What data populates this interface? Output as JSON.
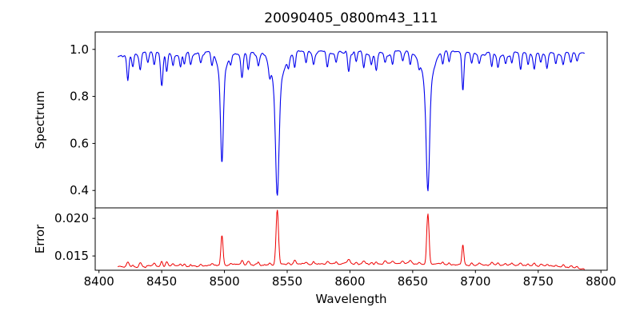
{
  "figure": {
    "title": "20090405_0800m43_111"
  },
  "chart_data": {
    "type": "line",
    "title": "20090405_0800m43_111",
    "xlabel": "Wavelength",
    "grid": false,
    "legend": "none",
    "x_data_range": [
      8415,
      8787
    ],
    "xlim": [
      8397,
      8805
    ],
    "xticks": [
      8400,
      8450,
      8500,
      8550,
      8600,
      8650,
      8700,
      8750,
      8800
    ],
    "panels": [
      {
        "name": "spectrum",
        "ylabel": "Spectrum",
        "ylim": [
          0.326,
          1.074
        ],
        "yticks": [
          0.4,
          0.6,
          0.8,
          1.0
        ],
        "ytick_labels": [
          "0.4",
          "0.6",
          "0.8",
          "1.0"
        ],
        "line_color": "#0000ee",
        "continuum": 0.992,
        "major_absorption_lines": [
          {
            "center": 8498.0,
            "min_flux": 0.51,
            "core_depth": 0.36,
            "core_width": 1.5,
            "wing_depth": 0.115,
            "wing_width": 4.5
          },
          {
            "center": 8542.1,
            "min_flux": 0.37,
            "core_depth": 0.46,
            "core_width": 1.9,
            "wing_depth": 0.155,
            "wing_width": 6.5
          },
          {
            "center": 8662.1,
            "min_flux": 0.39,
            "core_depth": 0.445,
            "core_width": 1.8,
            "wing_depth": 0.15,
            "wing_width": 6.0
          }
        ],
        "minor_absorption_lines": [
          [
            8423,
            0.105
          ],
          [
            8427,
            0.05
          ],
          [
            8433,
            0.065
          ],
          [
            8439,
            0.04
          ],
          [
            8444,
            0.055
          ],
          [
            8450,
            0.135,
            1.3
          ],
          [
            8454,
            0.08
          ],
          [
            8459,
            0.045
          ],
          [
            8465,
            0.055
          ],
          [
            8468,
            0.05
          ],
          [
            8473,
            0.04
          ],
          [
            8481,
            0.045
          ],
          [
            8490,
            0.055
          ],
          [
            8505,
            0.04
          ],
          [
            8514,
            0.105,
            1.2
          ],
          [
            8519,
            0.07
          ],
          [
            8527,
            0.045
          ],
          [
            8536,
            0.05
          ],
          [
            8551,
            0.045
          ],
          [
            8556,
            0.065
          ],
          [
            8565,
            0.05
          ],
          [
            8571,
            0.045
          ],
          [
            8582,
            0.06
          ],
          [
            8589,
            0.04
          ],
          [
            8599,
            0.09,
            1.2
          ],
          [
            8605,
            0.045
          ],
          [
            8611,
            0.06
          ],
          [
            8617,
            0.045
          ],
          [
            8621,
            0.06
          ],
          [
            8628,
            0.04
          ],
          [
            8634,
            0.045
          ],
          [
            8642,
            0.04
          ],
          [
            8648,
            0.055
          ],
          [
            8655,
            0.04
          ],
          [
            8674,
            0.055
          ],
          [
            8679,
            0.045
          ],
          [
            8690,
            0.165,
            1.1
          ],
          [
            8697,
            0.045
          ],
          [
            8703,
            0.04
          ],
          [
            8713,
            0.06
          ],
          [
            8718,
            0.05
          ],
          [
            8724,
            0.04
          ],
          [
            8729,
            0.045
          ],
          [
            8736,
            0.075
          ],
          [
            8742,
            0.05
          ],
          [
            8747,
            0.065
          ],
          [
            8752,
            0.04
          ],
          [
            8757,
            0.06
          ],
          [
            8764,
            0.045
          ],
          [
            8770,
            0.05
          ],
          [
            8776,
            0.04
          ],
          [
            8781,
            0.035
          ]
        ],
        "noise": {
          "slow_amp": 0.007,
          "slow_scale": 18,
          "dip_amp": 0.016,
          "dip_scale": 3.2,
          "fast_amp": 0.004,
          "fast_scale": 1.1
        }
      },
      {
        "name": "error",
        "ylabel": "Error",
        "ylim": [
          0.0131,
          0.0214
        ],
        "yticks": [
          0.015,
          0.02
        ],
        "ytick_labels": [
          "0.015",
          "0.020"
        ],
        "line_color": "#ee0000",
        "baseline": 0.01352,
        "broad_hump": {
          "center": 8610,
          "height": 0.00045,
          "width": 130
        },
        "spikes": [
          {
            "center": 8498.0,
            "peak_value": 0.0178,
            "height": 0.004,
            "width": 1.2
          },
          {
            "center": 8542.1,
            "peak_value": 0.0212,
            "height": 0.0073,
            "width": 1.4
          },
          {
            "center": 8662.1,
            "peak_value": 0.0207,
            "height": 0.0068,
            "width": 1.3
          },
          {
            "center": 8690.0,
            "peak_value": 0.0156,
            "height": 0.0017,
            "width": 1.0
          }
        ],
        "minor_line_coupling": 0.006,
        "noise": {
          "amp1": 0.00012,
          "scale1": 3.0,
          "amp2": 7e-05,
          "scale2": 1.0
        }
      }
    ]
  }
}
